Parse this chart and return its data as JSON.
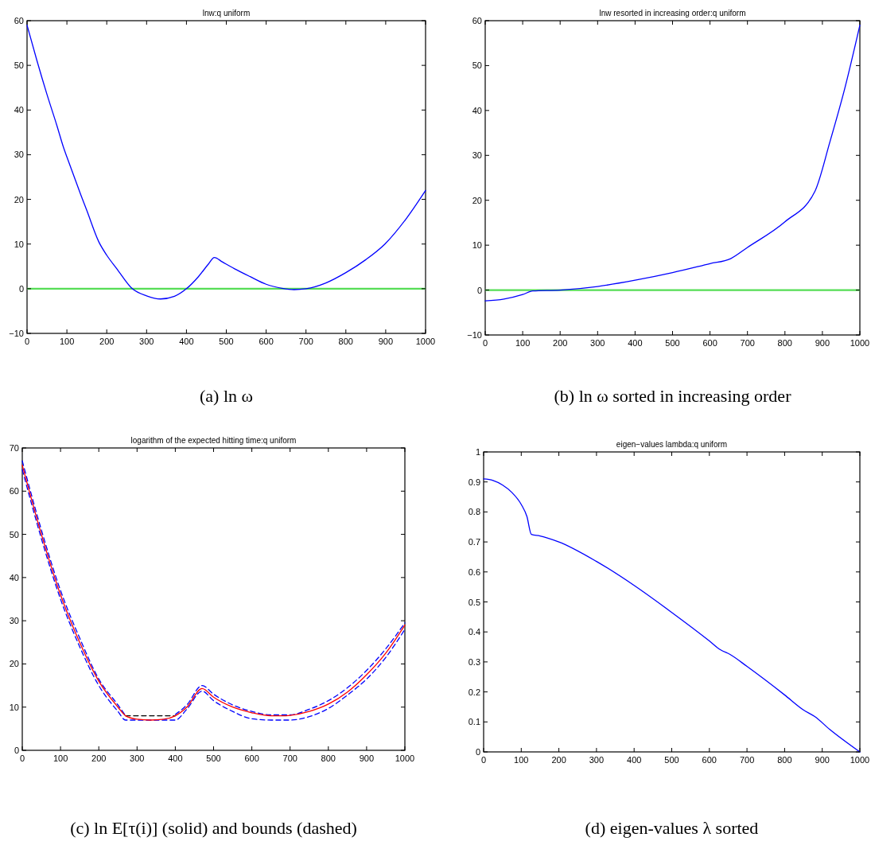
{
  "chart_data": [
    {
      "type": "line",
      "title": "lnw:q uniform",
      "annotations": [
        "(a) ln ω"
      ],
      "xlim": [
        0,
        1000
      ],
      "ylim": [
        -10,
        60
      ],
      "xticks": [
        0,
        100,
        200,
        300,
        400,
        500,
        600,
        700,
        800,
        900,
        1000
      ],
      "yticks": [
        -10,
        0,
        10,
        20,
        30,
        40,
        50,
        60
      ],
      "ref_lines": [
        {
          "axis": "y",
          "value": 0,
          "color": "#55dd55"
        }
      ],
      "series": [
        {
          "color": "#0000ff",
          "x": [
            0,
            25,
            50,
            75,
            92,
            100,
            135,
            150,
            180,
            200,
            225,
            264,
            300,
            335,
            370,
            400,
            430,
            455,
            470,
            490,
            520,
            560,
            600,
            640,
            670,
            700,
            750,
            800,
            850,
            898,
            950,
            1000
          ],
          "values": [
            59,
            51,
            43.5,
            36.5,
            31.5,
            29.5,
            21,
            17.5,
            10.5,
            7.5,
            4.5,
            0,
            -1.6,
            -2.3,
            -1.7,
            0,
            2.7,
            5.5,
            7,
            6,
            4.5,
            2.7,
            1.0,
            0.1,
            -0.2,
            0,
            1.3,
            3.6,
            6.5,
            10,
            15.5,
            22
          ]
        }
      ]
    },
    {
      "type": "line",
      "title": "lnw resorted in increasing order:q uniform",
      "annotations": [
        "(b) ln ω sorted in increasing order"
      ],
      "xlim": [
        0,
        1000
      ],
      "ylim": [
        -10,
        60
      ],
      "xticks": [
        0,
        100,
        200,
        300,
        400,
        500,
        600,
        700,
        800,
        900,
        1000
      ],
      "yticks": [
        -10,
        0,
        10,
        20,
        30,
        40,
        50,
        60
      ],
      "ref_lines": [
        {
          "axis": "y",
          "value": 0,
          "color": "#55dd55"
        }
      ],
      "series": [
        {
          "color": "#0000ff",
          "x": [
            0,
            50,
            100,
            127,
            200,
            300,
            400,
            500,
            600,
            655,
            700,
            800,
            880,
            920,
            960,
            1000
          ],
          "values": [
            -2.4,
            -2,
            -1,
            -0.2,
            0,
            0.8,
            2.2,
            3.9,
            5.9,
            7,
            9.5,
            15.2,
            22,
            33,
            45,
            59
          ]
        }
      ]
    },
    {
      "type": "line",
      "title": "logarithm of the expected hitting time:q uniform",
      "annotations": [
        "(c) ln E[τ(i)] (solid) and bounds (dashed)"
      ],
      "xlim": [
        0,
        1000
      ],
      "ylim": [
        0,
        70
      ],
      "xticks": [
        0,
        100,
        200,
        300,
        400,
        500,
        600,
        700,
        800,
        900,
        1000
      ],
      "yticks": [
        0,
        10,
        20,
        30,
        40,
        50,
        60,
        70
      ],
      "series": [
        {
          "color": "#0000ff",
          "line_style": "dashed",
          "x": [
            0,
            50,
            100,
            150,
            200,
            250,
            270
          ],
          "values": [
            67,
            51,
            37,
            26,
            16.5,
            10.5,
            8
          ]
        },
        {
          "color": "#0000ff",
          "line_style": "dashed",
          "x": [
            400,
            430,
            470,
            500,
            550,
            600,
            650,
            700,
            750,
            800,
            850,
            900,
            950,
            1000
          ],
          "values": [
            8.3,
            10.5,
            15,
            13,
            10.5,
            9,
            8.2,
            8.2,
            9.5,
            11.5,
            14.5,
            18.5,
            23.5,
            29.5
          ]
        },
        {
          "color": "#0000ff",
          "line_style": "dashed",
          "x": [
            0,
            50,
            100,
            150,
            200,
            250,
            270,
            335,
            400,
            430,
            470,
            500,
            550,
            600,
            650,
            700,
            750,
            800,
            850,
            900,
            950,
            1000
          ],
          "values": [
            65,
            49,
            35,
            24,
            15,
            9,
            7,
            7,
            7,
            9.5,
            13.7,
            11.5,
            9,
            7.3,
            7,
            7,
            7.8,
            9.7,
            12.8,
            16.5,
            21.5,
            28
          ]
        },
        {
          "color": "#000000",
          "line_style": "dashed",
          "x": [
            270,
            400
          ],
          "values": [
            8,
            8
          ]
        },
        {
          "color": "#ff0000",
          "line_style": "solid",
          "x": [
            0,
            50,
            100,
            150,
            200,
            250,
            270,
            300,
            335,
            370,
            400,
            430,
            470,
            500,
            550,
            600,
            650,
            680,
            700,
            750,
            800,
            850,
            900,
            950,
            1000
          ],
          "values": [
            66,
            50,
            36,
            25,
            16,
            10,
            8,
            7.2,
            7,
            7.2,
            8,
            10,
            14.3,
            12.3,
            10,
            8.7,
            8,
            8,
            8.1,
            9,
            10.7,
            13.5,
            17.5,
            22.5,
            29
          ]
        }
      ]
    },
    {
      "type": "line",
      "title": "eigen−values lambda:q uniform",
      "annotations": [
        "(d) eigen-values λ sorted"
      ],
      "xlim": [
        0,
        1000
      ],
      "ylim": [
        0,
        1
      ],
      "xticks": [
        0,
        100,
        200,
        300,
        400,
        500,
        600,
        700,
        800,
        900,
        1000
      ],
      "yticks": [
        0,
        0.1,
        0.2,
        0.3,
        0.4,
        0.5,
        0.6,
        0.7,
        0.8,
        0.9,
        1
      ],
      "series": [
        {
          "color": "#0000ff",
          "x": [
            0,
            25,
            50,
            75,
            100,
            115,
            127,
            150,
            200,
            300,
            400,
            500,
            600,
            630,
            655,
            700,
            800,
            850,
            880,
            920,
            1000
          ],
          "values": [
            0.91,
            0.905,
            0.89,
            0.865,
            0.825,
            0.785,
            0.725,
            0.72,
            0.7,
            0.635,
            0.555,
            0.465,
            0.37,
            0.34,
            0.325,
            0.285,
            0.19,
            0.14,
            0.118,
            0.075,
            0
          ]
        }
      ]
    }
  ]
}
